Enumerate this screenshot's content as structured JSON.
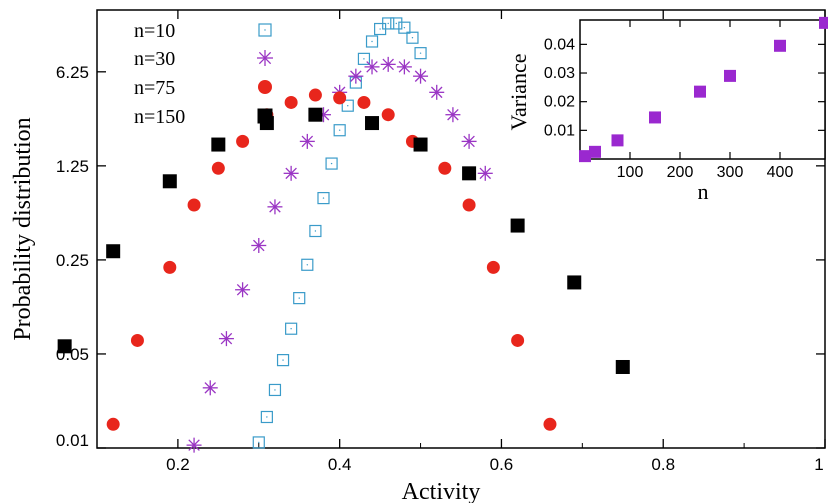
{
  "chart_data": [
    {
      "type": "scatter",
      "title": "",
      "xlabel": "Activity",
      "ylabel": "Probability  distribution",
      "xlim": [
        0.1,
        1.0
      ],
      "ylim": [
        0.01,
        18
      ],
      "yscale": "log",
      "xticks": [
        0.2,
        0.4,
        0.6,
        0.8,
        1
      ],
      "xtick_labels": [
        "0.2",
        "0.4",
        "0.6",
        "0.8",
        "1"
      ],
      "yticks": [
        0.01,
        0.05,
        0.25,
        1.25,
        6.25
      ],
      "ytick_labels": [
        "0.01",
        "0.05",
        "0.25",
        "1.25",
        "6.25"
      ],
      "grid": false,
      "legend_position": "top-left",
      "series": [
        {
          "name": "n=10",
          "marker": "open-square",
          "color": "#3a9bc9",
          "x": [
            0.3,
            0.31,
            0.32,
            0.33,
            0.34,
            0.35,
            0.36,
            0.37,
            0.38,
            0.39,
            0.4,
            0.41,
            0.42,
            0.43,
            0.44,
            0.45,
            0.46,
            0.47,
            0.48,
            0.49,
            0.5
          ],
          "y": [
            0.011,
            0.017,
            0.027,
            0.045,
            0.077,
            0.13,
            0.23,
            0.41,
            0.72,
            1.3,
            2.3,
            3.5,
            5.2,
            7.8,
            10.5,
            13.0,
            14.3,
            14.3,
            13.3,
            11.2,
            8.6
          ]
        },
        {
          "name": "n=30",
          "marker": "asterisk",
          "color": "#9a35c4",
          "x": [
            0.22,
            0.24,
            0.26,
            0.28,
            0.3,
            0.32,
            0.34,
            0.36,
            0.38,
            0.4,
            0.42,
            0.44,
            0.46,
            0.48,
            0.5,
            0.52,
            0.54,
            0.56,
            0.58
          ],
          "y": [
            0.0105,
            0.028,
            0.065,
            0.15,
            0.32,
            0.62,
            1.1,
            1.9,
            3.0,
            4.4,
            5.8,
            6.8,
            7.1,
            6.8,
            5.8,
            4.4,
            3.0,
            1.9,
            1.1
          ]
        },
        {
          "name": "n=75",
          "marker": "filled-circle",
          "color": "#e8261c",
          "x": [
            0.12,
            0.15,
            0.19,
            0.22,
            0.25,
            0.28,
            0.31,
            0.34,
            0.37,
            0.4,
            0.43,
            0.46,
            0.49,
            0.53,
            0.56,
            0.59,
            0.62,
            0.66
          ],
          "y": [
            0.015,
            0.063,
            0.22,
            0.64,
            1.2,
            1.9,
            3.0,
            3.7,
            4.2,
            4.0,
            3.7,
            3.0,
            1.9,
            1.2,
            0.64,
            0.22,
            0.063,
            0.015
          ]
        },
        {
          "name": "n=150",
          "marker": "filled-square",
          "color": "#000000",
          "x": [
            0.06,
            0.12,
            0.19,
            0.25,
            0.31,
            0.37,
            0.44,
            0.5,
            0.56,
            0.62,
            0.69,
            0.75
          ],
          "y": [
            0.057,
            0.29,
            0.96,
            1.8,
            2.6,
            3.0,
            2.6,
            1.8,
            1.1,
            0.45,
            0.17,
            0.04
          ]
        }
      ]
    },
    {
      "type": "scatter",
      "title": "",
      "xlabel": "n",
      "ylabel": "Variance",
      "xlim": [
        0,
        490
      ],
      "ylim": [
        0,
        0.0485
      ],
      "xticks": [
        100,
        200,
        300,
        400
      ],
      "xtick_labels": [
        "100",
        "200",
        "300",
        "400"
      ],
      "yticks": [
        0.01,
        0.02,
        0.03,
        0.04
      ],
      "ytick_labels": [
        "0.01",
        "0.02",
        "0.03",
        "0.04"
      ],
      "grid": false,
      "position": "inset top-right",
      "series": [
        {
          "name": "",
          "marker": "filled-square",
          "color": "#9a28cf",
          "x": [
            10,
            30,
            75,
            150,
            240,
            300,
            400,
            490
          ],
          "y": [
            0.001,
            0.0025,
            0.0065,
            0.0145,
            0.0235,
            0.029,
            0.0395,
            0.0475
          ]
        }
      ]
    }
  ]
}
